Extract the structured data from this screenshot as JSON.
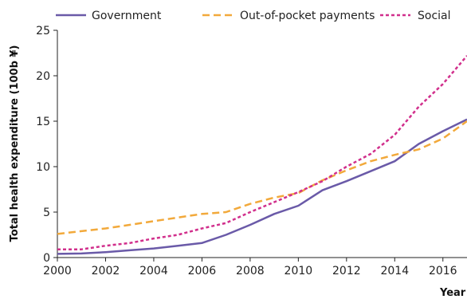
{
  "chart_data": {
    "type": "line",
    "title": "",
    "xlabel": "Year",
    "ylabel": "Total health expenditure (100b ¥)",
    "xlim": [
      2000,
      2017
    ],
    "ylim": [
      0,
      25
    ],
    "x_ticks": [
      2000,
      2002,
      2004,
      2006,
      2008,
      2010,
      2012,
      2014,
      2016
    ],
    "y_ticks": [
      0,
      5,
      10,
      15,
      20,
      25
    ],
    "grid": false,
    "legend_position": "top",
    "x": [
      2000,
      2001,
      2002,
      2003,
      2004,
      2005,
      2006,
      2007,
      2008,
      2009,
      2010,
      2011,
      2012,
      2013,
      2014,
      2015,
      2016,
      2017
    ],
    "series": [
      {
        "name": "Government",
        "color": "#6a5aa8",
        "dash": "solid",
        "values": [
          0.4,
          0.45,
          0.6,
          0.8,
          1.0,
          1.3,
          1.6,
          2.5,
          3.6,
          4.8,
          5.7,
          7.4,
          8.4,
          9.5,
          10.6,
          12.5,
          13.9,
          15.2
        ]
      },
      {
        "name": "Out-of-pocket payments",
        "color": "#f2a93b",
        "dash": "long",
        "values": [
          2.6,
          2.9,
          3.2,
          3.6,
          4.0,
          4.4,
          4.8,
          5.0,
          5.9,
          6.6,
          7.1,
          8.5,
          9.6,
          10.6,
          11.3,
          11.9,
          13.1,
          15.0
        ]
      },
      {
        "name": "Social",
        "color": "#d12f8c",
        "dash": "short",
        "values": [
          0.9,
          0.9,
          1.3,
          1.6,
          2.1,
          2.5,
          3.2,
          3.8,
          5.0,
          6.1,
          7.2,
          8.4,
          10.0,
          11.4,
          13.5,
          16.6,
          19.1,
          22.2
        ]
      }
    ]
  }
}
